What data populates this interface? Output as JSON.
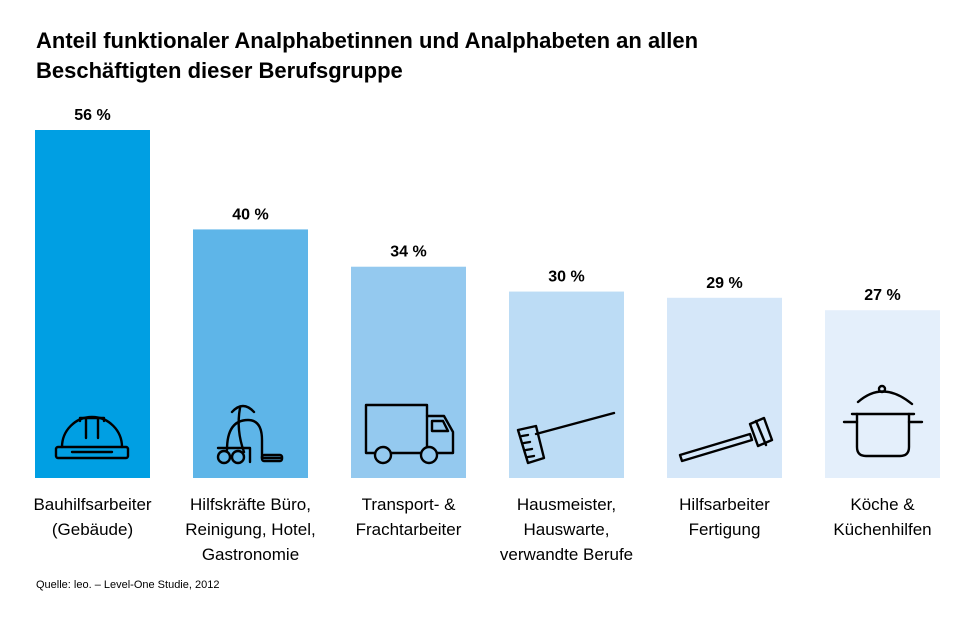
{
  "title": {
    "line1": "Anteil funktionaler Analphabetinnen und Analphabeten an allen",
    "line2": "Beschäftigten dieser Berufsgruppe"
  },
  "source": "Quelle: leo. – Level-One Studie,  2012",
  "chart_data": {
    "type": "bar",
    "title": "Anteil funktionaler Analphabetinnen und Analphabeten an allen Beschäftigten dieser Berufsgruppe",
    "categories": [
      [
        "Bauhilfsarbeiter",
        "(Gebäude)"
      ],
      [
        "Hilfskräfte Büro,",
        "Reinigung, Hotel,",
        "Gastronomie"
      ],
      [
        "Transport- &",
        "Frachtarbeiter"
      ],
      [
        "Hausmeister,",
        "Hauswarte,",
        "verwandte Berufe"
      ],
      [
        "Hilfsarbeiter",
        "Fertigung"
      ],
      [
        "Köche &",
        "Küchenhilfen"
      ]
    ],
    "values": [
      56,
      40,
      34,
      30,
      29,
      27
    ],
    "value_labels": [
      "56 %",
      "40 %",
      "34 %",
      "30 %",
      "29 %",
      "27 %"
    ],
    "unit": "%",
    "ylim": [
      0,
      56
    ],
    "grid": false,
    "bar_colors": [
      "#009fe3",
      "#5eb5e8",
      "#94c9ef",
      "#bcdcf5",
      "#d5e7f9",
      "#e4effb"
    ],
    "icons": [
      "hard-hat-icon",
      "vacuum-cleaner-icon",
      "truck-icon",
      "broom-icon",
      "hammer-icon",
      "cooking-pot-icon"
    ]
  }
}
